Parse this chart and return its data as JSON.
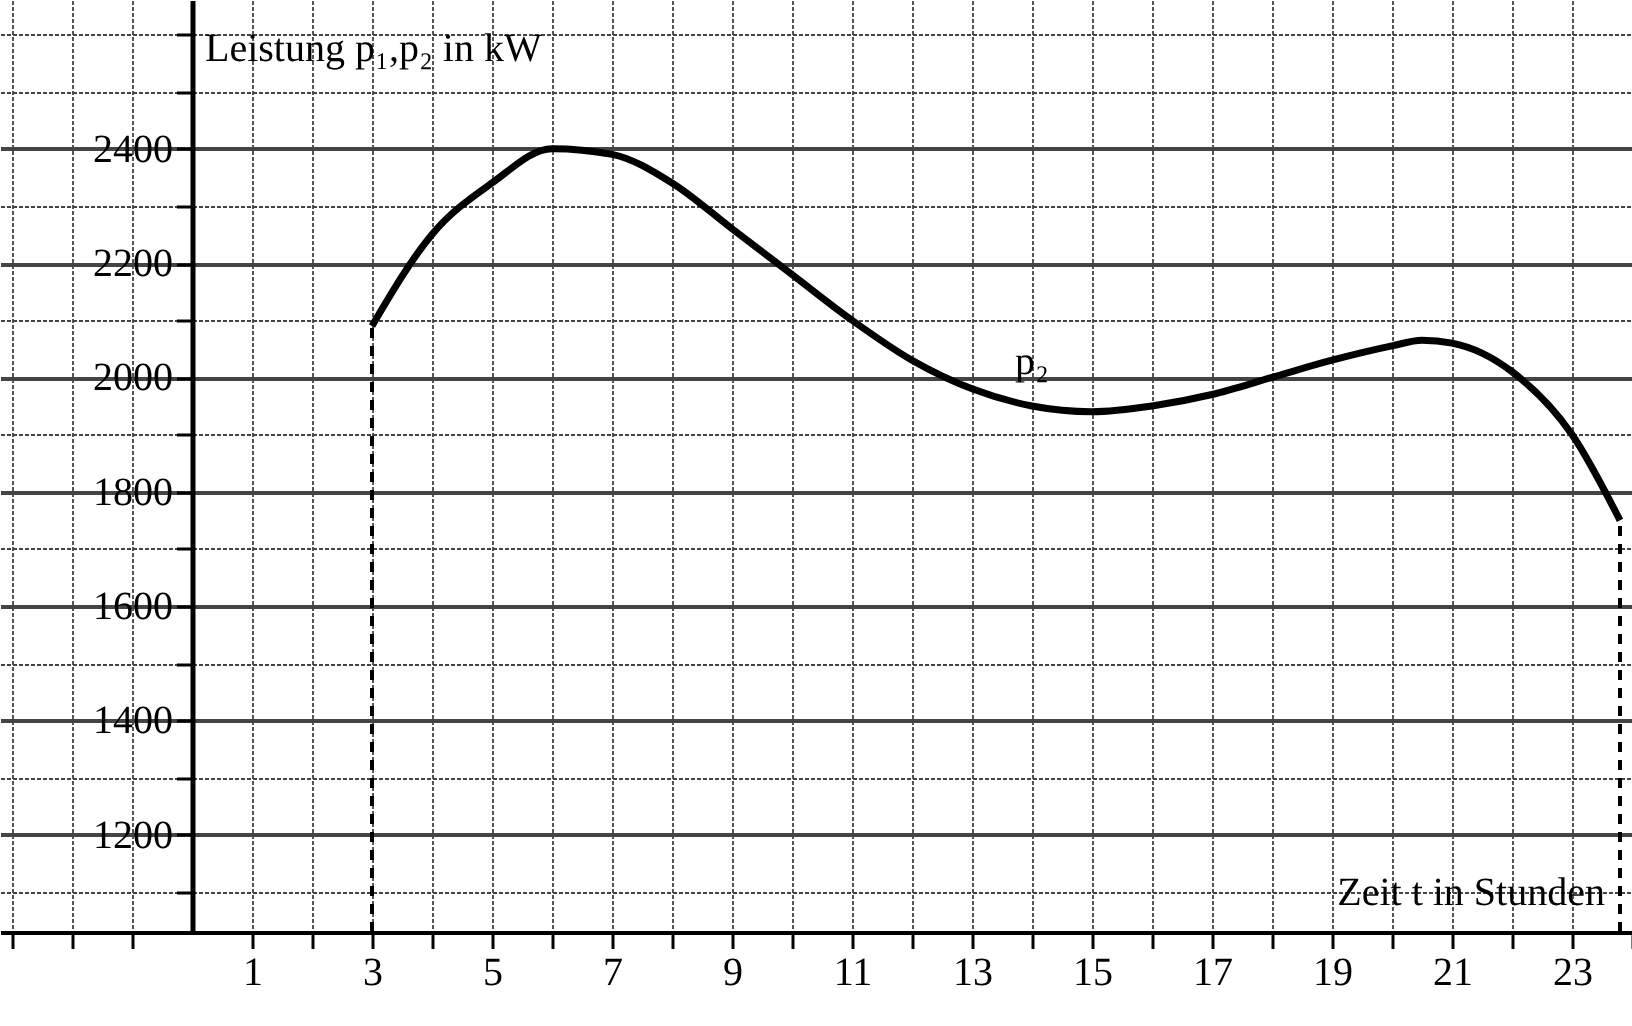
{
  "chart_data": {
    "type": "line",
    "xlabel": "Zeit t in Stunden",
    "ylabel": "Leistung p₁,p₂ in kW",
    "series": [
      {
        "name": "p₂",
        "color": "#000000",
        "x": [
          3,
          4,
          5,
          6,
          7,
          8,
          9,
          10,
          11,
          12,
          13,
          14,
          15,
          16,
          17,
          18,
          19,
          20,
          20.5,
          21,
          22,
          23,
          23.8
        ],
        "values": [
          2090,
          2250,
          2340,
          2400,
          2390,
          2340,
          2260,
          2180,
          2100,
          2030,
          1980,
          1950,
          1940,
          1950,
          1970,
          2000,
          2030,
          2055,
          2065,
          2060,
          2010,
          1900,
          1750
        ]
      }
    ],
    "xlim": [
      -3.2,
      24
    ],
    "ylim": [
      1030,
      2660
    ],
    "xticks": [
      {
        "value": -3,
        "label": null
      },
      {
        "value": -2,
        "label": null
      },
      {
        "value": -1,
        "label": null
      },
      1,
      {
        "value": 2,
        "label": null
      },
      3,
      {
        "value": 4,
        "label": null
      },
      5,
      {
        "value": 6,
        "label": null
      },
      7,
      {
        "value": 8,
        "label": null
      },
      9,
      {
        "value": 10,
        "label": null
      },
      11,
      {
        "value": 12,
        "label": null
      },
      13,
      {
        "value": 14,
        "label": null
      },
      15,
      {
        "value": 16,
        "label": null
      },
      17,
      {
        "value": 18,
        "label": null
      },
      19,
      {
        "value": 20,
        "label": null
      },
      21,
      {
        "value": 22,
        "label": null
      },
      23,
      {
        "value": 24,
        "label": null
      }
    ],
    "yticks": [
      {
        "value": 1100,
        "label": null
      },
      1200,
      {
        "value": 1300,
        "label": null
      },
      1400,
      {
        "value": 1500,
        "label": null
      },
      1600,
      {
        "value": 1700,
        "label": null
      },
      1800,
      {
        "value": 1900,
        "label": null
      },
      2000,
      {
        "value": 2100,
        "label": null
      },
      2200,
      {
        "value": 2300,
        "label": null
      },
      2400,
      {
        "value": 2500,
        "label": null
      },
      {
        "value": 2600,
        "label": null
      }
    ],
    "grid": true,
    "marker": "none",
    "line_style": "solid",
    "ref_lines": [
      {
        "axis": "x",
        "value": 3,
        "line_style": "dashed",
        "color": "#000000"
      },
      {
        "axis": "x",
        "value": 23.8,
        "line_style": "dashed",
        "color": "#000000"
      }
    ]
  }
}
